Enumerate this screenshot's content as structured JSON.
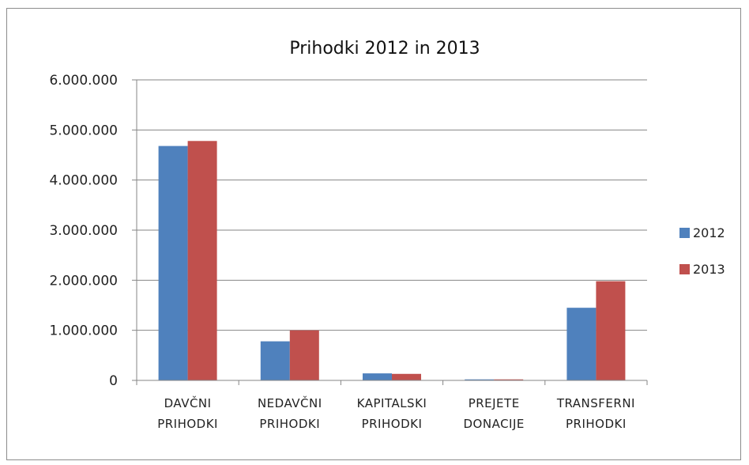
{
  "chart_data": {
    "type": "bar",
    "title": "Prihodki 2012 in 2013",
    "categories": [
      [
        "DAVČNI",
        "PRIHODKI"
      ],
      [
        "NEDAVČNI",
        "PRIHODKI"
      ],
      [
        "KAPITALSKI",
        "PRIHODKI"
      ],
      [
        "PREJETE",
        "DONACIJE"
      ],
      [
        "TRANSFERNI",
        "PRIHODKI"
      ]
    ],
    "series": [
      {
        "name": "2012",
        "color": "#4f81bd",
        "values": [
          4680000,
          780000,
          140000,
          20000,
          1450000
        ]
      },
      {
        "name": "2013",
        "color": "#c0504d",
        "values": [
          4780000,
          1000000,
          130000,
          20000,
          1980000
        ]
      }
    ],
    "ylim": [
      0,
      6000000
    ],
    "yticks": [
      "0",
      "1.000.000",
      "2.000.000",
      "3.000.000",
      "4.000.000",
      "5.000.000",
      "6.000.000"
    ],
    "grid": true,
    "legend": "right"
  }
}
